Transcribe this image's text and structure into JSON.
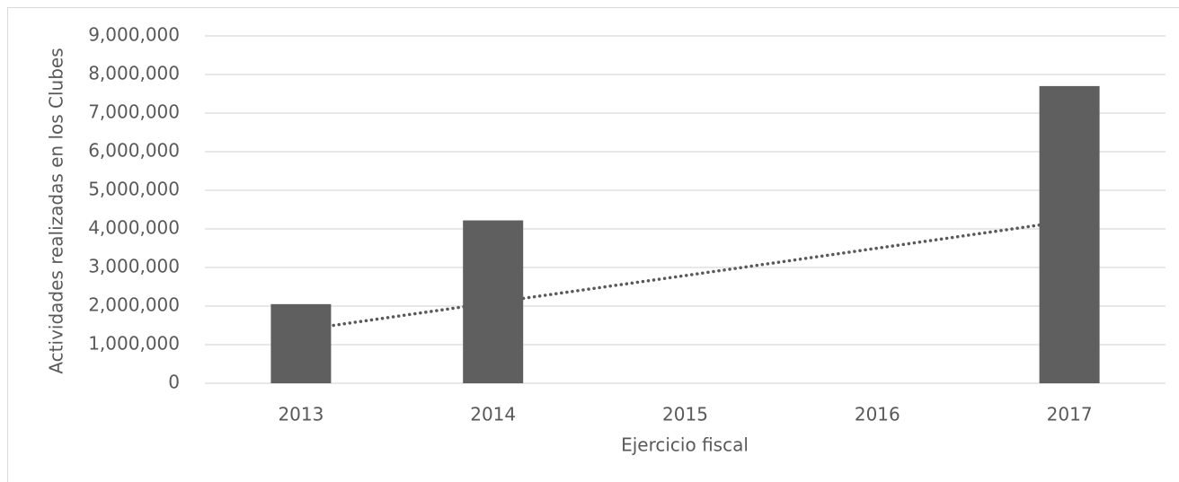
{
  "chart_data": {
    "type": "bar",
    "x_label": "Ejercicio fiscal",
    "y_label": "Actividades realizadas en los Clubes",
    "categories": [
      "2013",
      "2014",
      "2015",
      "2016",
      "2017"
    ],
    "values": [
      2050000,
      4220000,
      null,
      null,
      7700000
    ],
    "color": "#5f5f5f",
    "trendline": {
      "values": [
        1380000,
        2090000,
        2790000,
        3500000,
        4210000
      ],
      "color": "#595959",
      "style": "dotted"
    },
    "ylim": [
      0,
      9000000
    ],
    "yticks": [
      0,
      {
        "value": 1000000,
        "label": "1,000,000"
      },
      {
        "value": 2000000,
        "label": "2,000,000"
      },
      {
        "value": 3000000,
        "label": "3,000,000"
      },
      {
        "value": 4000000,
        "label": "4,000,000"
      },
      {
        "value": 5000000,
        "label": "5,000,000"
      },
      {
        "value": 6000000,
        "label": "6,000,000"
      },
      {
        "value": 7000000,
        "label": "7,000,000"
      },
      {
        "value": 8000000,
        "label": "8,000,000"
      },
      {
        "value": 9000000,
        "label": "9,000,000"
      }
    ],
    "grid": true
  }
}
